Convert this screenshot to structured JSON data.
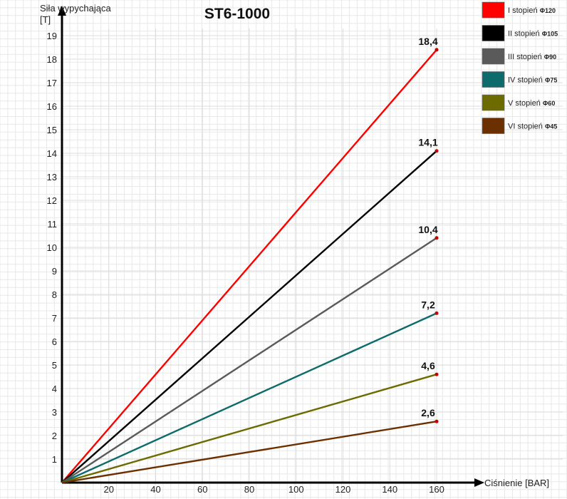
{
  "chart_data": {
    "type": "line",
    "title": "ST6-1000",
    "ylabel": "Siła wypychająca",
    "ylabel_unit": "[T]",
    "xlabel": "Ciśnienie [BAR]",
    "xlim": [
      0,
      160
    ],
    "ylim": [
      0,
      19
    ],
    "x_ticks": [
      "20",
      "40",
      "60",
      "80",
      "100",
      "120",
      "140",
      "160"
    ],
    "y_ticks": [
      "1",
      "2",
      "3",
      "4",
      "5",
      "6",
      "7",
      "8",
      "9",
      "10",
      "11",
      "12",
      "13",
      "14",
      "15",
      "16",
      "17",
      "18",
      "19"
    ],
    "grid": true,
    "legend_position": "top-right",
    "series": [
      {
        "name": "I stopień",
        "diameter": "Φ120",
        "color": "#ff0000",
        "x": [
          0,
          160
        ],
        "y": [
          0,
          18.4
        ],
        "end_label": "18,4"
      },
      {
        "name": "II stopień",
        "diameter": "Φ105",
        "color": "#000000",
        "x": [
          0,
          160
        ],
        "y": [
          0,
          14.1
        ],
        "end_label": "14,1"
      },
      {
        "name": "III stopień",
        "diameter": "Φ90",
        "color": "#5a5a5a",
        "x": [
          0,
          160
        ],
        "y": [
          0,
          10.4
        ],
        "end_label": "10,4"
      },
      {
        "name": "IV stopień",
        "diameter": "Φ75",
        "color": "#0e6b6b",
        "x": [
          0,
          160
        ],
        "y": [
          0,
          7.2
        ],
        "end_label": "7,2"
      },
      {
        "name": "V stopień",
        "diameter": "Φ60",
        "color": "#6b6b00",
        "x": [
          0,
          160
        ],
        "y": [
          0,
          4.6
        ],
        "end_label": "4,6"
      },
      {
        "name": "VI stopień",
        "diameter": "Φ45",
        "color": "#6b3000",
        "x": [
          0,
          160
        ],
        "y": [
          0,
          2.6
        ],
        "end_label": "2,6"
      }
    ]
  }
}
